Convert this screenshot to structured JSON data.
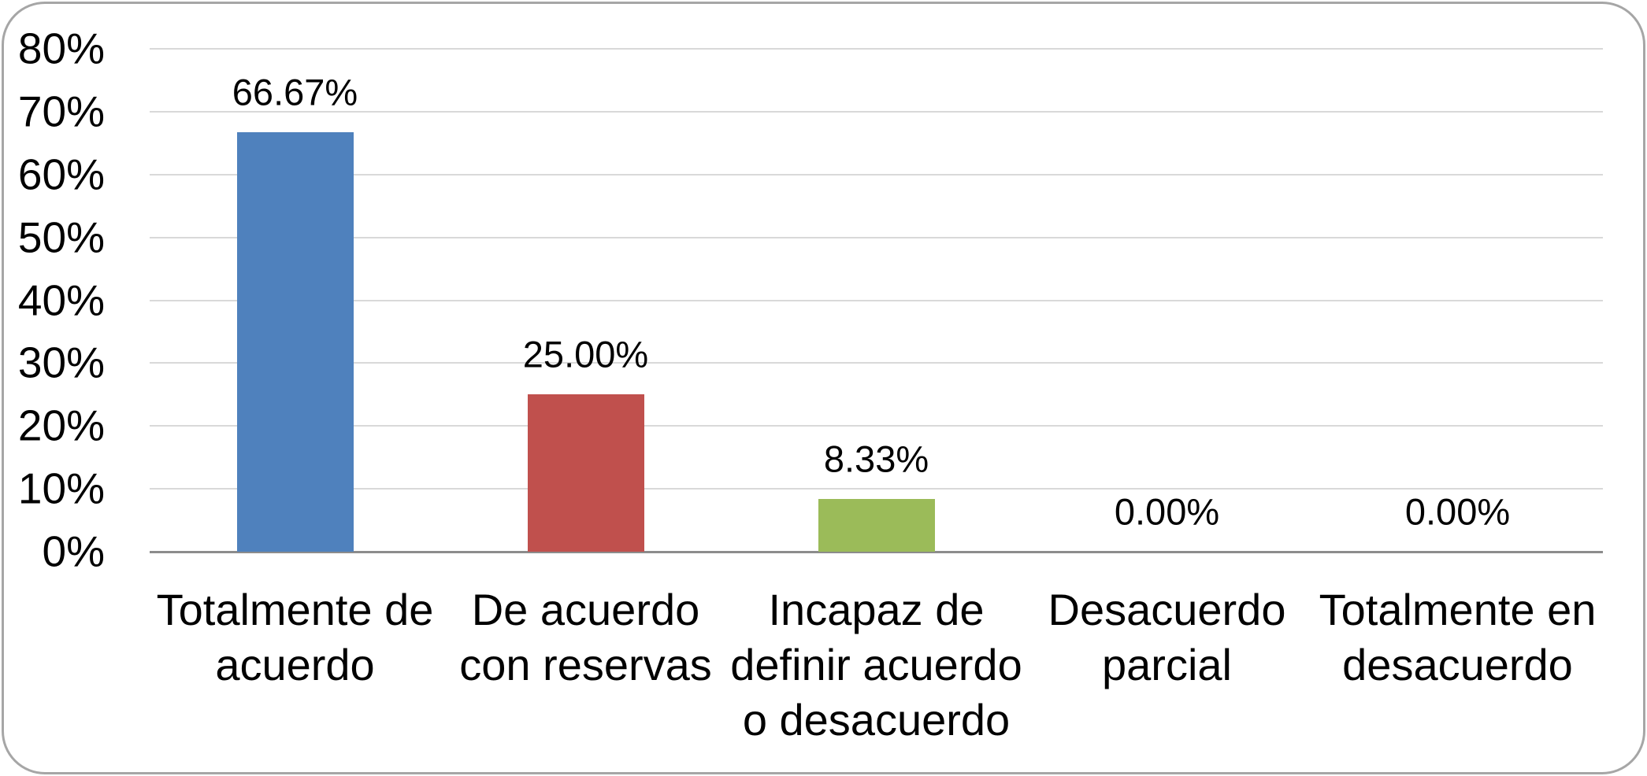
{
  "chart_data": {
    "type": "bar",
    "title": "",
    "xlabel": "",
    "ylabel": "",
    "categories": [
      "Totalmente de acuerdo",
      "De acuerdo con reservas",
      "Incapaz de definir acuerdo o desacuerdo",
      "Desacuerdo parcial",
      "Totalmente en desacuerdo"
    ],
    "category_lines": [
      [
        "Totalmente de",
        "acuerdo"
      ],
      [
        "De acuerdo",
        "con reservas"
      ],
      [
        "Incapaz de",
        "definir acuerdo",
        "o desacuerdo"
      ],
      [
        "Desacuerdo",
        "parcial"
      ],
      [
        "Totalmente en",
        "desacuerdo"
      ]
    ],
    "values": [
      66.67,
      25.0,
      8.33,
      0.0,
      0.0
    ],
    "data_labels": [
      "66.67%",
      "25.00%",
      "8.33%",
      "0.00%",
      "0.00%"
    ],
    "bar_colors": [
      "#4F81BD",
      "#C0504D",
      "#9BBB59",
      null,
      null
    ],
    "ylim": [
      0,
      80
    ],
    "yticks": [
      {
        "value": 80,
        "label": "80%"
      },
      {
        "value": 70,
        "label": "70%"
      },
      {
        "value": 60,
        "label": "60%"
      },
      {
        "value": 50,
        "label": "50%"
      },
      {
        "value": 40,
        "label": "40%"
      },
      {
        "value": 30,
        "label": "30%"
      },
      {
        "value": 20,
        "label": "20%"
      },
      {
        "value": 10,
        "label": "10%"
      },
      {
        "value": 0,
        "label": "0%"
      }
    ],
    "grid": true,
    "legend": false
  },
  "colors": {
    "grid": "#D9D9D9",
    "axis": "#8C8C8C",
    "frame_border": "#A6A6A6",
    "background": "#FFFFFF",
    "text": "#000000"
  }
}
